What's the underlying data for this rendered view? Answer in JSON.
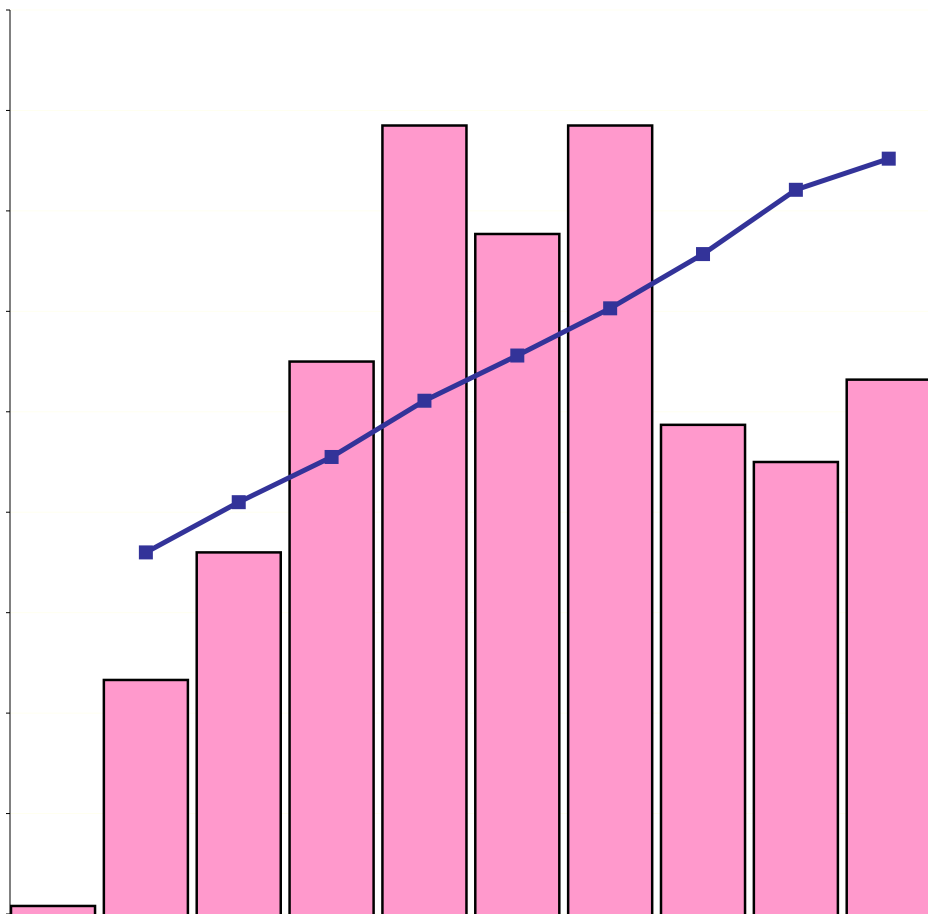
{
  "chart_data": {
    "type": "bar",
    "title": "",
    "xlabel": "",
    "ylabel": "",
    "categories": [
      "",
      "",
      "",
      "",
      "",
      "",
      "",
      "",
      "",
      ""
    ],
    "series": [
      {
        "kind": "bar",
        "values": [
          0.08,
          2.33,
          3.6,
          5.5,
          7.85,
          6.77,
          7.85,
          4.87,
          4.5,
          5.32
        ]
      },
      {
        "kind": "line",
        "values": [
          null,
          3.6,
          4.1,
          4.55,
          5.11,
          5.56,
          6.03,
          6.57,
          7.21,
          7.52
        ]
      }
    ],
    "ylim": [
      0,
      9
    ],
    "yticks": [
      0,
      1,
      2,
      3,
      4,
      5,
      6,
      7,
      8,
      9
    ],
    "grid": true,
    "legend": "none",
    "colors": {
      "bar_fill": "#ff99cc",
      "bar_stroke": "#000000",
      "line": "#333399",
      "marker": "#333399",
      "grid": "#fffff0",
      "axis": "#000000"
    }
  }
}
